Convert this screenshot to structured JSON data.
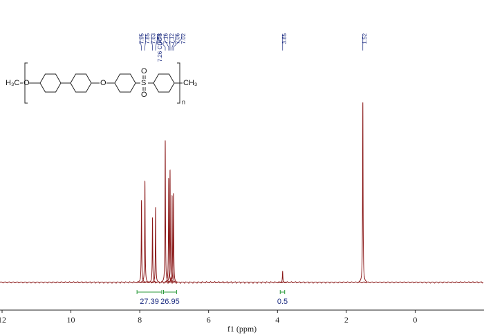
{
  "chart_data": {
    "type": "nmr",
    "xlabel": "f1 (ppm)",
    "xlim": [
      12.06,
      -2.0
    ],
    "xticks": [
      12,
      10,
      8,
      6,
      4,
      2,
      0
    ],
    "ylim": [
      0,
      280
    ],
    "color": "#8b1a1a",
    "x": [
      7.95,
      7.85,
      7.63,
      7.54,
      7.26,
      7.16,
      7.12,
      7.06,
      7.02,
      3.85,
      1.52
    ],
    "values": [
      118,
      146,
      93,
      108,
      205,
      150,
      162,
      125,
      128,
      16,
      260
    ],
    "value_labels": [
      "7.95",
      "7.85",
      "7.63",
      "7.54",
      "7.26 CDCl3",
      "7.16",
      "7.12",
      "7.06",
      "7.02",
      "3.85",
      "1.52"
    ],
    "integrals": [
      {
        "from": 8.08,
        "to": 7.36,
        "value": 27.39
      },
      {
        "from": 7.31,
        "to": 6.93,
        "value": 26.95
      },
      {
        "from": 3.92,
        "to": 3.79,
        "value": 0.5
      }
    ],
    "structure": {
      "left": "H₃C",
      "o1": "O",
      "o2": "O",
      "s": "S",
      "so_top": "O",
      "so_bottom": "O",
      "right": "CH₃",
      "n": "n"
    }
  }
}
